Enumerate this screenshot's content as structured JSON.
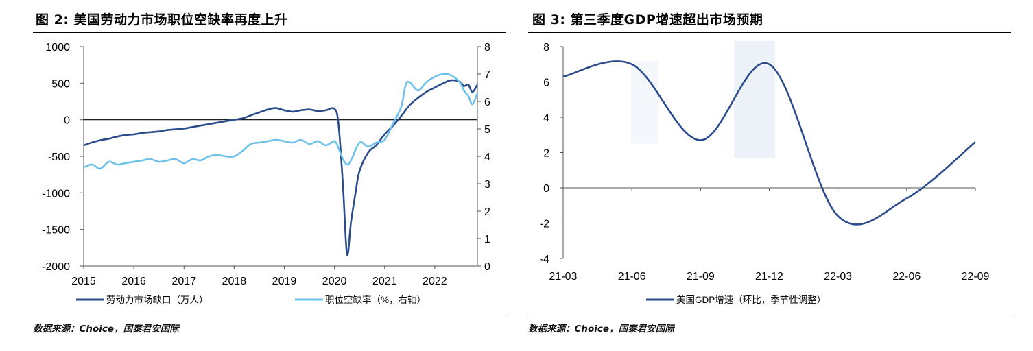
{
  "chart_data": [
    {
      "id": "fig2",
      "type": "line",
      "title": "图 2: 美国劳动力市场职位空缺率再度上升",
      "source": "数据来源：Choice，国泰君安国际",
      "x_ticks": [
        "2015",
        "2016",
        "2017",
        "2018",
        "2019",
        "2020",
        "2021",
        "2022"
      ],
      "x_range": [
        2015.0,
        2022.85
      ],
      "y_left": {
        "ticks": [
          "1000",
          "500",
          "0",
          "-500",
          "-1000",
          "-1500",
          "-2000"
        ],
        "ylim": [
          -2000,
          1000
        ]
      },
      "y_right": {
        "ticks": [
          "8",
          "7",
          "6",
          "5",
          "4",
          "3",
          "2",
          "1",
          "0"
        ],
        "ylim": [
          0,
          8
        ]
      },
      "series": [
        {
          "name": "劳动力市场缺口（万人）",
          "axis": "left",
          "color": "#2B4C8C",
          "x": [
            2015.0,
            2015.17,
            2015.33,
            2015.5,
            2015.67,
            2015.83,
            2016.0,
            2016.17,
            2016.33,
            2016.5,
            2016.67,
            2016.83,
            2017.0,
            2017.17,
            2017.33,
            2017.5,
            2017.67,
            2017.83,
            2018.0,
            2018.17,
            2018.33,
            2018.5,
            2018.67,
            2018.83,
            2019.0,
            2019.17,
            2019.33,
            2019.5,
            2019.67,
            2019.83,
            2020.0,
            2020.08,
            2020.17,
            2020.25,
            2020.33,
            2020.42,
            2020.5,
            2020.67,
            2020.83,
            2021.0,
            2021.17,
            2021.33,
            2021.5,
            2021.67,
            2021.83,
            2022.0,
            2022.17,
            2022.33,
            2022.5,
            2022.58,
            2022.67,
            2022.75,
            2022.85
          ],
          "values": [
            -350,
            -310,
            -280,
            -260,
            -230,
            -210,
            -200,
            -180,
            -170,
            -160,
            -140,
            -130,
            -120,
            -100,
            -80,
            -60,
            -40,
            -20,
            0,
            20,
            60,
            100,
            140,
            160,
            130,
            110,
            130,
            140,
            120,
            130,
            150,
            -60,
            -900,
            -1840,
            -1400,
            -1000,
            -700,
            -450,
            -350,
            -200,
            -80,
            50,
            200,
            300,
            380,
            440,
            500,
            540,
            520,
            460,
            480,
            380,
            480
          ]
        },
        {
          "name": "职位空缺率（%，右轴）",
          "axis": "right",
          "color": "#6EC1EA",
          "x": [
            2015.0,
            2015.17,
            2015.33,
            2015.5,
            2015.67,
            2015.83,
            2016.0,
            2016.17,
            2016.33,
            2016.5,
            2016.67,
            2016.83,
            2017.0,
            2017.17,
            2017.33,
            2017.5,
            2017.67,
            2017.83,
            2018.0,
            2018.17,
            2018.33,
            2018.5,
            2018.67,
            2018.83,
            2019.0,
            2019.17,
            2019.33,
            2019.5,
            2019.67,
            2019.83,
            2020.0,
            2020.08,
            2020.17,
            2020.25,
            2020.33,
            2020.5,
            2020.67,
            2020.83,
            2021.0,
            2021.17,
            2021.33,
            2021.42,
            2021.5,
            2021.67,
            2021.83,
            2022.0,
            2022.17,
            2022.33,
            2022.5,
            2022.58,
            2022.67,
            2022.75,
            2022.85
          ],
          "values": [
            3.6,
            3.7,
            3.55,
            3.8,
            3.7,
            3.75,
            3.8,
            3.85,
            3.9,
            3.8,
            3.85,
            3.9,
            3.75,
            3.9,
            3.85,
            4.0,
            4.05,
            4.0,
            4.0,
            4.2,
            4.45,
            4.5,
            4.55,
            4.6,
            4.55,
            4.5,
            4.6,
            4.45,
            4.55,
            4.4,
            4.55,
            4.3,
            3.9,
            3.7,
            3.85,
            4.5,
            4.35,
            4.5,
            4.6,
            5.2,
            5.8,
            6.6,
            6.7,
            6.4,
            6.7,
            6.9,
            7.0,
            6.95,
            6.7,
            6.4,
            6.2,
            5.9,
            6.3
          ]
        }
      ]
    },
    {
      "id": "fig3",
      "type": "line",
      "title": "图 3: 第三季度GDP增速超出市场预期",
      "source": "数据来源：Choice，国泰君安国际",
      "categories": [
        "21-03",
        "21-06",
        "21-09",
        "21-12",
        "22-03",
        "22-06",
        "22-09"
      ],
      "y_ticks": [
        "8",
        "6",
        "4",
        "2",
        "0",
        "-2",
        "-4"
      ],
      "ylim": [
        -4,
        8
      ],
      "series": [
        {
          "name": "美国GDP增速（环比，季节性调整）",
          "color": "#2B4C8C",
          "values": [
            6.3,
            7.0,
            2.7,
            7.0,
            -1.6,
            -0.6,
            2.6
          ]
        }
      ]
    }
  ]
}
